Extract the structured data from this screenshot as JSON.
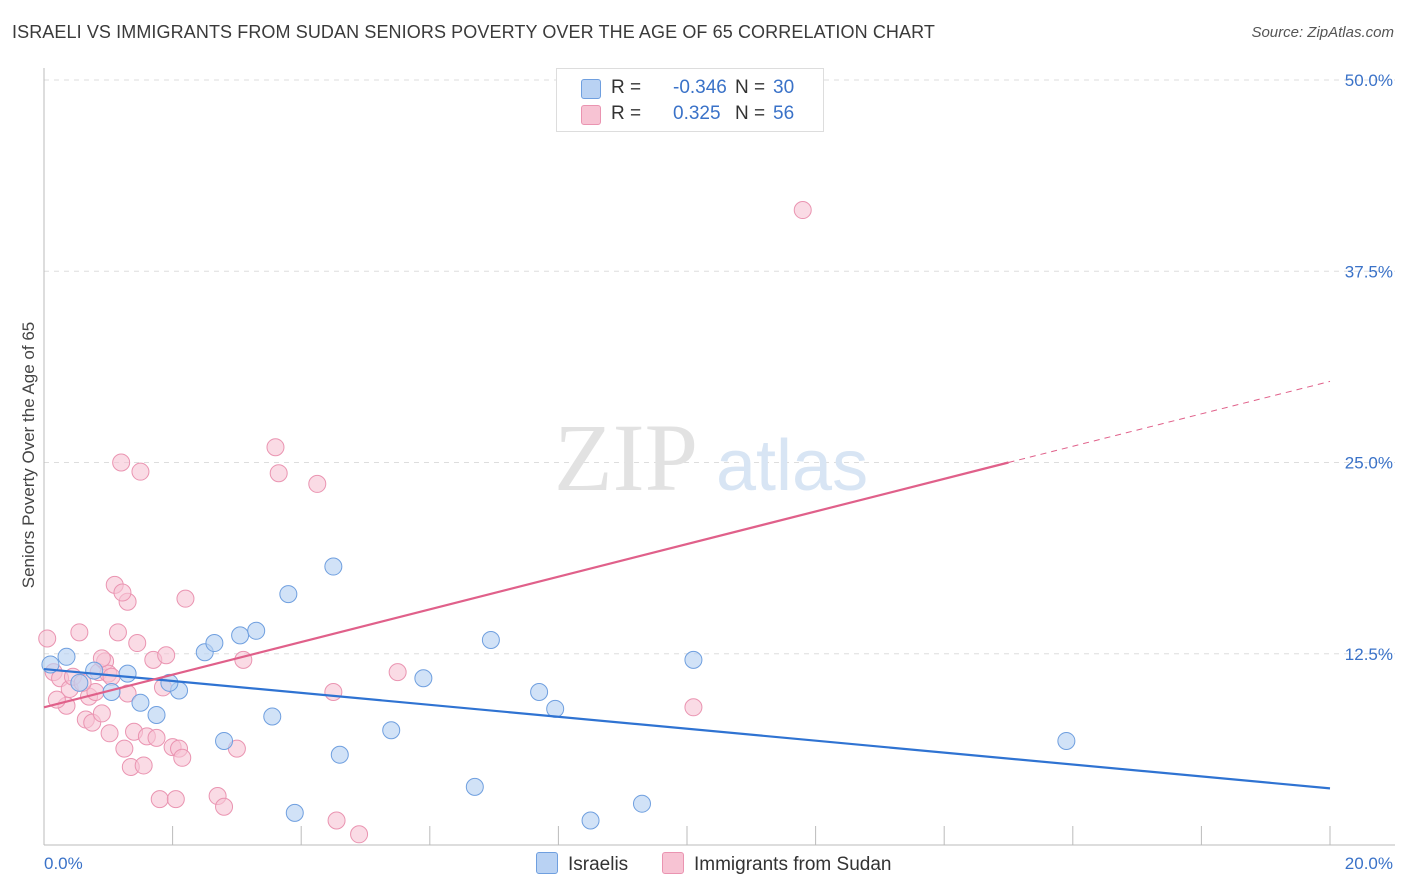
{
  "title": "ISRAELI VS IMMIGRANTS FROM SUDAN SENIORS POVERTY OVER THE AGE OF 65 CORRELATION CHART",
  "source": "Source: ZipAtlas.com",
  "watermark": {
    "zip": "ZIP",
    "atlas": "atlas"
  },
  "legend_top": [
    {
      "r_label": "R =",
      "r_value": "-0.346",
      "n_label": "N =",
      "n_value": "30"
    },
    {
      "r_label": "R =",
      "r_value": "0.325",
      "n_label": "N =",
      "n_value": "56"
    }
  ],
  "legend_bottom": [
    "Israelis",
    "Immigrants from Sudan"
  ],
  "colors": {
    "israelis_fill": "#b9d2f3",
    "israelis_stroke": "#6f9fdf",
    "israelis_line": "#2f73d2",
    "sudan_fill": "#f7c3d3",
    "sudan_stroke": "#ea94b1",
    "sudan_line": "#e0608a",
    "tick_label": "#3a72c8",
    "grid": "#dddddd"
  },
  "chart_data": {
    "type": "scatter",
    "title": "ISRAELI VS IMMIGRANTS FROM SUDAN SENIORS POVERTY OVER THE AGE OF 65 CORRELATION CHART",
    "xlabel": "",
    "ylabel": "Seniors Poverty Over the Age of 65",
    "xlim": [
      0,
      20
    ],
    "ylim": [
      0,
      50
    ],
    "x_tick_labels": [
      {
        "value": 0,
        "label": "0.0%"
      },
      {
        "value": 20,
        "label": "20.0%"
      }
    ],
    "y_tick_labels": [
      {
        "value": 12.5,
        "label": "12.5%"
      },
      {
        "value": 25,
        "label": "25.0%"
      },
      {
        "value": 37.5,
        "label": "37.5%"
      },
      {
        "value": 50,
        "label": "50.0%"
      }
    ],
    "series": [
      {
        "name": "Israelis",
        "r": -0.346,
        "n": 30,
        "points": [
          [
            0.1,
            11.8
          ],
          [
            0.35,
            12.3
          ],
          [
            0.55,
            10.6
          ],
          [
            0.78,
            11.4
          ],
          [
            1.05,
            10.0
          ],
          [
            1.3,
            11.2
          ],
          [
            1.5,
            9.3
          ],
          [
            1.75,
            8.5
          ],
          [
            2.1,
            10.1
          ],
          [
            2.5,
            12.6
          ],
          [
            2.65,
            13.2
          ],
          [
            2.8,
            6.8
          ],
          [
            3.05,
            13.7
          ],
          [
            3.3,
            14.0
          ],
          [
            3.55,
            8.4
          ],
          [
            3.8,
            16.4
          ],
          [
            3.9,
            2.1
          ],
          [
            4.5,
            18.2
          ],
          [
            4.6,
            5.9
          ],
          [
            5.4,
            7.5
          ],
          [
            5.9,
            10.9
          ],
          [
            6.7,
            3.8
          ],
          [
            6.95,
            13.4
          ],
          [
            7.7,
            10.0
          ],
          [
            7.95,
            8.9
          ],
          [
            8.5,
            1.6
          ],
          [
            9.3,
            2.7
          ],
          [
            10.1,
            12.1
          ],
          [
            15.9,
            6.8
          ],
          [
            1.95,
            10.6
          ]
        ],
        "trend": {
          "x": [
            0,
            20
          ],
          "y": [
            11.5,
            3.7
          ]
        }
      },
      {
        "name": "Immigrants from Sudan",
        "r": 0.325,
        "n": 56,
        "points": [
          [
            0.05,
            13.5
          ],
          [
            0.15,
            11.3
          ],
          [
            0.25,
            10.9
          ],
          [
            0.35,
            9.1
          ],
          [
            0.4,
            10.2
          ],
          [
            0.55,
            13.9
          ],
          [
            0.65,
            8.2
          ],
          [
            0.7,
            9.7
          ],
          [
            0.75,
            8.0
          ],
          [
            0.8,
            10.0
          ],
          [
            0.85,
            11.3
          ],
          [
            0.9,
            8.6
          ],
          [
            0.95,
            12.0
          ],
          [
            1.0,
            11.2
          ],
          [
            1.02,
            7.3
          ],
          [
            1.1,
            17.0
          ],
          [
            1.15,
            13.9
          ],
          [
            1.2,
            25.0
          ],
          [
            1.25,
            6.3
          ],
          [
            1.3,
            9.9
          ],
          [
            1.35,
            5.1
          ],
          [
            1.4,
            7.4
          ],
          [
            1.45,
            13.2
          ],
          [
            1.5,
            24.4
          ],
          [
            1.55,
            5.2
          ],
          [
            1.6,
            7.1
          ],
          [
            1.7,
            12.1
          ],
          [
            1.75,
            7.0
          ],
          [
            1.8,
            3.0
          ],
          [
            1.85,
            10.3
          ],
          [
            1.9,
            12.4
          ],
          [
            2.0,
            6.4
          ],
          [
            2.05,
            3.0
          ],
          [
            2.1,
            6.3
          ],
          [
            2.15,
            5.7
          ],
          [
            2.2,
            16.1
          ],
          [
            2.7,
            3.2
          ],
          [
            2.8,
            2.5
          ],
          [
            3.0,
            6.3
          ],
          [
            3.1,
            12.1
          ],
          [
            3.6,
            26.0
          ],
          [
            3.65,
            24.3
          ],
          [
            4.25,
            23.6
          ],
          [
            4.5,
            10.0
          ],
          [
            4.55,
            1.6
          ],
          [
            4.9,
            0.7
          ],
          [
            5.5,
            11.3
          ],
          [
            10.1,
            9.0
          ],
          [
            11.8,
            41.5
          ],
          [
            0.45,
            11.0
          ],
          [
            0.6,
            10.6
          ],
          [
            1.3,
            15.9
          ],
          [
            0.9,
            12.2
          ],
          [
            1.05,
            11.0
          ],
          [
            0.2,
            9.5
          ],
          [
            1.22,
            16.5
          ]
        ],
        "trend": {
          "x": [
            0,
            15
          ],
          "y": [
            9.0,
            25.0
          ]
        },
        "trend_dashed": {
          "x": [
            15,
            20
          ],
          "y": [
            25.0,
            30.3
          ]
        }
      }
    ]
  }
}
